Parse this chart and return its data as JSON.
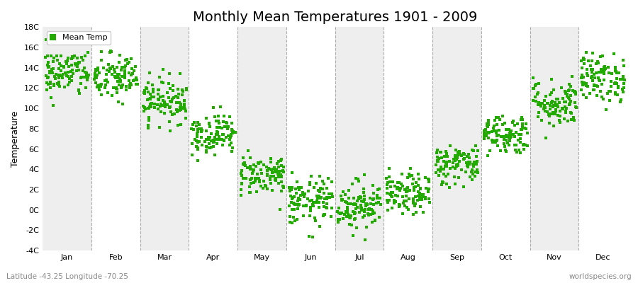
{
  "title": "Monthly Mean Temperatures 1901 - 2009",
  "ylabel": "Temperature",
  "subtitle_left": "Latitude -43.25 Longitude -70.25",
  "subtitle_right": "worldspecies.org",
  "legend_label": "Mean Temp",
  "marker_color": "#22aa00",
  "background_color": "#ffffff",
  "strip_colors": [
    "#eeeeee",
    "#ffffff"
  ],
  "ylim": [
    -4,
    18
  ],
  "yticks": [
    -4,
    -2,
    0,
    2,
    4,
    6,
    8,
    10,
    12,
    14,
    16,
    18
  ],
  "ytick_labels": [
    "-4C",
    "-2C",
    "0C",
    "2C",
    "4C",
    "6C",
    "8C",
    "10C",
    "12C",
    "14C",
    "16C",
    "18C"
  ],
  "months": [
    "Jan",
    "Feb",
    "Mar",
    "Apr",
    "May",
    "Jun",
    "Jul",
    "Aug",
    "Sep",
    "Oct",
    "Nov",
    "Dec"
  ],
  "monthly_means": [
    13.5,
    13.0,
    10.8,
    7.5,
    3.5,
    0.8,
    0.5,
    1.5,
    4.5,
    7.5,
    10.5,
    13.0
  ],
  "monthly_stds": [
    1.2,
    1.2,
    1.1,
    1.0,
    1.0,
    1.2,
    1.2,
    1.0,
    1.0,
    1.0,
    1.2,
    1.2
  ],
  "n_years": 109,
  "seed": 42,
  "title_fontsize": 14,
  "axis_label_fontsize": 9,
  "tick_fontsize": 8,
  "legend_fontsize": 8,
  "marker_size": 3,
  "dpi": 100,
  "figsize": [
    9.0,
    4.0
  ]
}
